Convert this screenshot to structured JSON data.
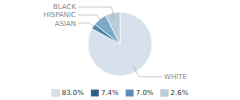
{
  "chart_data": {
    "type": "pie",
    "categories": [
      "WHITE",
      "ASIAN",
      "HISPANIC",
      "BLACK"
    ],
    "values": [
      83.0,
      2.6,
      7.0,
      7.4
    ],
    "colors": [
      "#d6e1eb",
      "#4a7fa8",
      "#7aaac8",
      "#b8cdd9"
    ],
    "legend": "bottom",
    "legend_items": [
      {
        "label": "83.0%",
        "color": "#d6e1eb"
      },
      {
        "label": "7.4%",
        "color": "#2e5f8a"
      },
      {
        "label": "7.0%",
        "color": "#5b8db8"
      },
      {
        "label": "2.6%",
        "color": "#b8cdd9"
      }
    ]
  }
}
